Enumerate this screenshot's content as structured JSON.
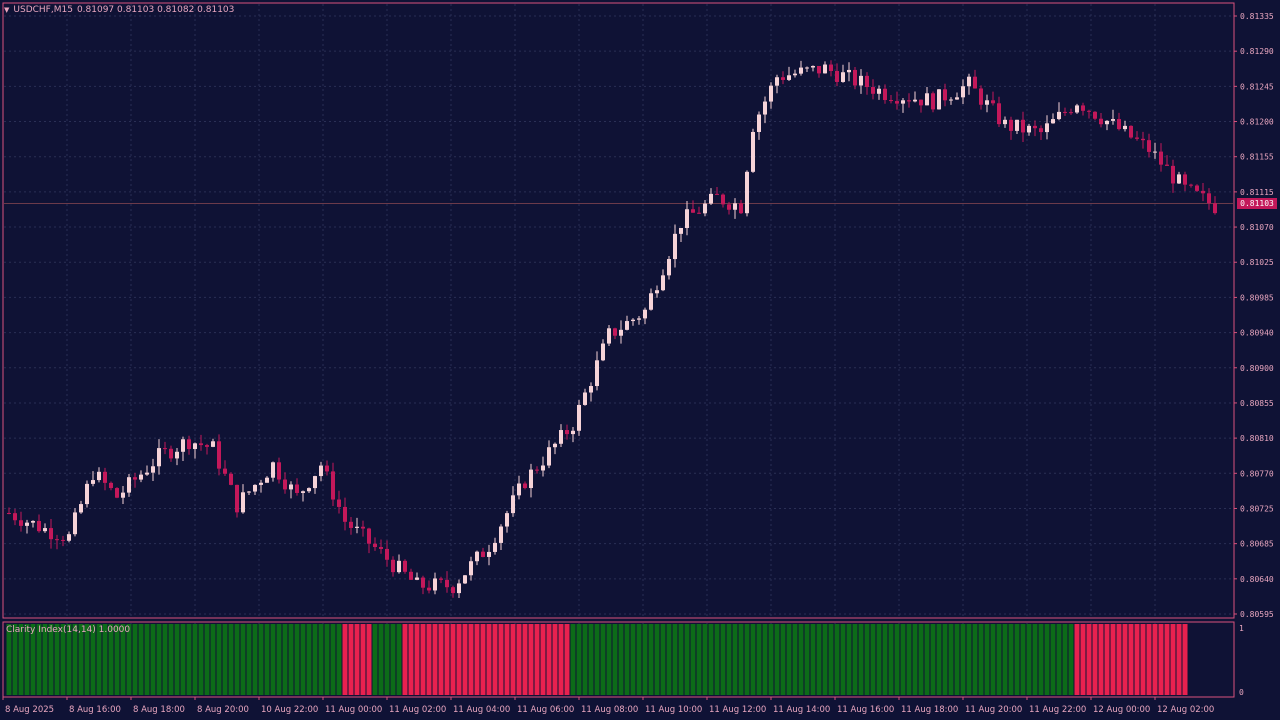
{
  "colors": {
    "background": "#0f1235",
    "frame": "#d9527d",
    "grid": "#2a2f55",
    "text": "#e8a6bf",
    "bull": "#f6d3d8",
    "bear": "#c3185a",
    "indicator_green": "#0c6b18",
    "indicator_red": "#e8214f",
    "price_line": "#6b3a4a",
    "price_tag_bg": "#c3185a",
    "price_tag_text": "#ffffff"
  },
  "header": {
    "menu_icon": "triangle-down-icon",
    "symbol": "USDCHF,M15",
    "ohlc": "0.81097 0.81103 0.81082 0.81103"
  },
  "current_price": "0.81103",
  "indicator": {
    "label": "Clarity Index(14,14) 1.0000",
    "ticks": [
      "1",
      "0"
    ]
  },
  "chart_data": {
    "type": "candlestick",
    "symbol": "USDCHF",
    "timeframe": "M15",
    "price_axis": [
      "0.81335",
      "0.81290",
      "0.81245",
      "0.81200",
      "0.81155",
      "0.81115",
      "0.81070",
      "0.81025",
      "0.80985",
      "0.80940",
      "0.80900",
      "0.80855",
      "0.80810",
      "0.80770",
      "0.80725",
      "0.80685",
      "0.80640",
      "0.80595"
    ],
    "ylim": [
      0.80595,
      0.81335
    ],
    "time_axis": [
      "8 Aug 2025",
      "8 Aug 16:00",
      "8 Aug 18:00",
      "8 Aug 20:00",
      "10 Aug 22:00",
      "11 Aug 00:00",
      "11 Aug 02:00",
      "11 Aug 04:00",
      "11 Aug 06:00",
      "11 Aug 08:00",
      "11 Aug 10:00",
      "11 Aug 12:00",
      "11 Aug 14:00",
      "11 Aug 16:00",
      "11 Aug 18:00",
      "11 Aug 20:00",
      "11 Aug 22:00",
      "12 Aug 00:00",
      "12 Aug 02:00"
    ],
    "anchors": [
      [
        0,
        0.8072
      ],
      [
        6,
        0.807
      ],
      [
        10,
        0.8069
      ],
      [
        14,
        0.8077
      ],
      [
        18,
        0.8074
      ],
      [
        25,
        0.8079
      ],
      [
        30,
        0.8081
      ],
      [
        34,
        0.808
      ],
      [
        38,
        0.8073
      ],
      [
        44,
        0.8078
      ],
      [
        48,
        0.8074
      ],
      [
        52,
        0.8078
      ],
      [
        56,
        0.8071
      ],
      [
        62,
        0.8067
      ],
      [
        68,
        0.8063
      ],
      [
        74,
        0.8063
      ],
      [
        80,
        0.8068
      ],
      [
        86,
        0.8076
      ],
      [
        94,
        0.8083
      ],
      [
        100,
        0.8094
      ],
      [
        106,
        0.8097
      ],
      [
        112,
        0.8108
      ],
      [
        118,
        0.8111
      ],
      [
        122,
        0.811
      ],
      [
        124,
        0.812
      ],
      [
        128,
        0.8126
      ],
      [
        136,
        0.8127
      ],
      [
        146,
        0.8124
      ],
      [
        154,
        0.8123
      ],
      [
        160,
        0.8125
      ],
      [
        166,
        0.812
      ],
      [
        172,
        0.8119
      ],
      [
        178,
        0.8123
      ],
      [
        184,
        0.812
      ],
      [
        190,
        0.8117
      ],
      [
        196,
        0.8112
      ],
      [
        201,
        0.811
      ]
    ],
    "indicator_segments": [
      {
        "state": 1,
        "count": 56
      },
      {
        "state": 0,
        "count": 5
      },
      {
        "state": 1,
        "count": 5
      },
      {
        "state": 0,
        "count": 28
      },
      {
        "state": 1,
        "count": 84
      },
      {
        "state": 0,
        "count": 19
      }
    ],
    "indicator_ylim": [
      0,
      1
    ]
  }
}
